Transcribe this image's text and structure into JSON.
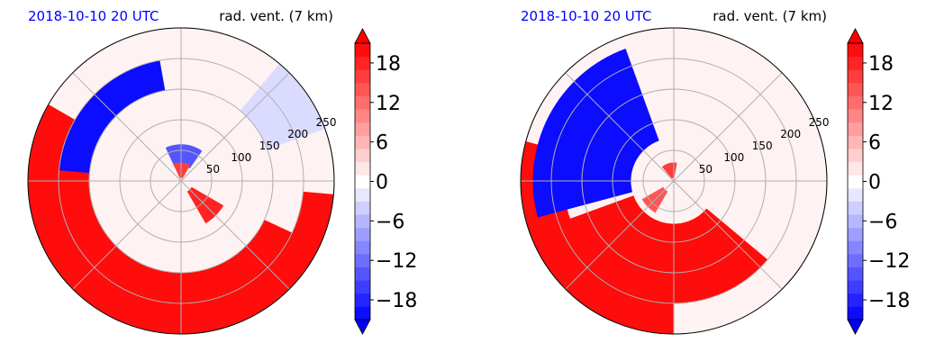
{
  "panels": [
    {
      "left_title": "2018-10-10 20 UTC",
      "right_title": "rad. vent. (7 km)",
      "title_color": "#0000ff",
      "chart_data": {
        "type": "heatmap",
        "projection": "polar",
        "radial_ticks": [
          50,
          100,
          150,
          200,
          250
        ],
        "radial_range": [
          0,
          250
        ],
        "grid": true,
        "angular_grid_deg": [
          0,
          45,
          90,
          135,
          180,
          225,
          270,
          315
        ],
        "regions": [
          {
            "value": 20,
            "angle_start": 150,
            "angle_end": 355,
            "r_start": 200,
            "r_end": 250
          },
          {
            "value": 20,
            "angle_start": 170,
            "angle_end": 335,
            "r_start": 150,
            "r_end": 200
          },
          {
            "value": -20,
            "angle_start": 100,
            "angle_end": 175,
            "r_start": 150,
            "r_end": 200
          },
          {
            "value": -14,
            "angle_start": 55,
            "angle_end": 115,
            "r_start": 25,
            "r_end": 60
          },
          {
            "value": 16,
            "angle_start": 60,
            "angle_end": 115,
            "r_start": 5,
            "r_end": 30
          },
          {
            "value": 18,
            "angle_start": 300,
            "angle_end": 330,
            "r_start": 20,
            "r_end": 80
          },
          {
            "value": -3,
            "angle_start": 20,
            "angle_end": 50,
            "r_start": 150,
            "r_end": 250
          }
        ]
      }
    },
    {
      "left_title": "2018-10-10 20 UTC",
      "right_title": "rad. vent. (7 km)",
      "title_color": "#0000ff",
      "chart_data": {
        "type": "heatmap",
        "projection": "polar",
        "radial_ticks": [
          50,
          100,
          150,
          200,
          250
        ],
        "radial_range": [
          0,
          250
        ],
        "grid": true,
        "angular_grid_deg": [
          0,
          45,
          90,
          135,
          180,
          225,
          270,
          315
        ],
        "regions": [
          {
            "value": 20,
            "angle_start": 165,
            "angle_end": 270,
            "r_start": 180,
            "r_end": 250
          },
          {
            "value": 20,
            "angle_start": 200,
            "angle_end": 320,
            "r_start": 70,
            "r_end": 200
          },
          {
            "value": -20,
            "angle_start": 110,
            "angle_end": 195,
            "r_start": 70,
            "r_end": 230
          },
          {
            "value": 14,
            "angle_start": 210,
            "angle_end": 240,
            "r_start": 20,
            "r_end": 60
          },
          {
            "value": 16,
            "angle_start": 80,
            "angle_end": 130,
            "r_start": 5,
            "r_end": 30
          }
        ]
      }
    }
  ],
  "colorbar": {
    "ticks": [
      18,
      12,
      6,
      0,
      -6,
      -12,
      -18
    ],
    "tick_labels": [
      "18",
      "12",
      "6",
      "0",
      "−6",
      "−12",
      "−18"
    ],
    "range": [
      -21,
      21
    ],
    "levels": 21,
    "cmap": "bwr",
    "extend": "both"
  }
}
